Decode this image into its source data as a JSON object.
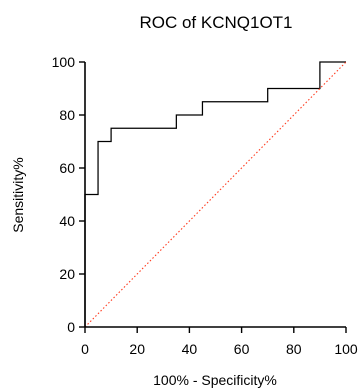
{
  "chart_data": {
    "type": "line",
    "title": "ROC of KCNQ1OT1",
    "xlabel": "100% - Specificity%",
    "ylabel": "Sensitivity%",
    "xlim": [
      0,
      100
    ],
    "ylim": [
      0,
      100
    ],
    "xticks": [
      0,
      20,
      40,
      60,
      80,
      100
    ],
    "yticks": [
      0,
      20,
      40,
      60,
      80,
      100
    ],
    "grid": false,
    "series": [
      {
        "style": "step",
        "color": "#000000",
        "x": [
          0,
          0,
          5,
          5,
          10,
          10,
          35,
          35,
          45,
          45,
          70,
          70,
          90,
          90,
          100
        ],
        "y": [
          0,
          50,
          50,
          70,
          70,
          75,
          75,
          80,
          80,
          85,
          85,
          90,
          90,
          100,
          100
        ]
      },
      {
        "style": "dotted",
        "color": "#ff3b1f",
        "x": [
          0,
          100
        ],
        "y": [
          0,
          100
        ]
      }
    ]
  }
}
